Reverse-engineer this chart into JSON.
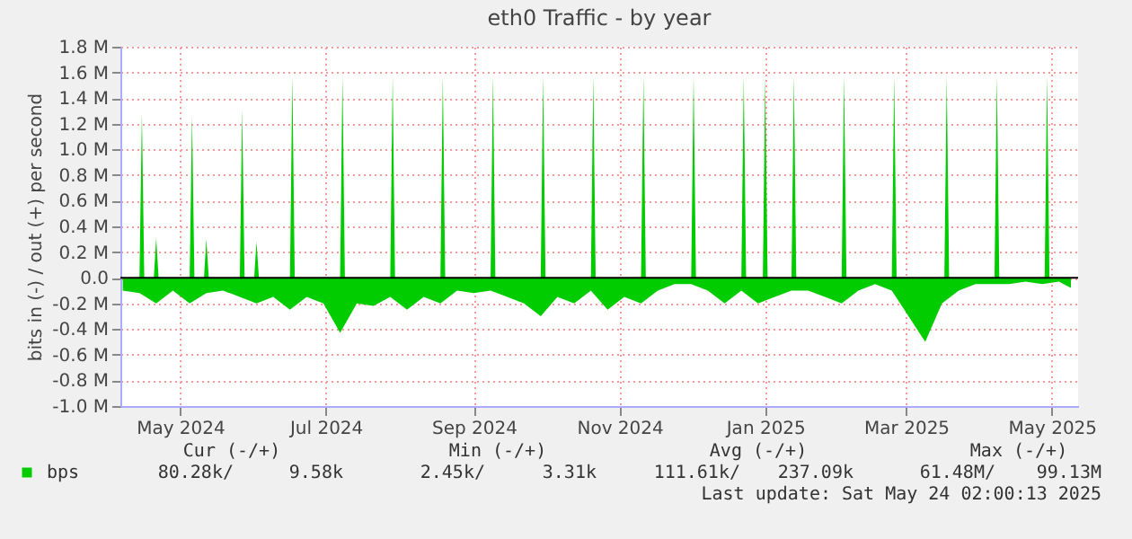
{
  "chart_data": {
    "type": "area",
    "title": "eth0 Traffic - by year",
    "ylabel": "bits in (-) / out (+) per second",
    "xlim": [
      "2024-04-20",
      "2025-05-26"
    ],
    "xticks": [
      {
        "value": "2024-05-15",
        "label": "May 2024"
      },
      {
        "value": "2024-07-15",
        "label": "Jul 2024"
      },
      {
        "value": "2024-09-15",
        "label": "Sep 2024"
      },
      {
        "value": "2024-11-15",
        "label": "Nov 2024"
      },
      {
        "value": "2025-01-15",
        "label": "Jan 2025"
      },
      {
        "value": "2025-03-15",
        "label": "Mar 2025"
      },
      {
        "value": "2025-05-15",
        "label": "May 2025"
      }
    ],
    "ylim": [
      -1.0,
      1.8
    ],
    "yticks": [
      {
        "value": -1.0,
        "label": "-1.0 M"
      },
      {
        "value": -0.8,
        "label": "-0.8 M"
      },
      {
        "value": -0.6,
        "label": "-0.6 M"
      },
      {
        "value": -0.4,
        "label": "-0.4 M"
      },
      {
        "value": -0.2,
        "label": "-0.2 M"
      },
      {
        "value": 0,
        "label": "0.0"
      },
      {
        "value": 0.2,
        "label": "0.2 M"
      },
      {
        "value": 0.4,
        "label": "0.4 M"
      },
      {
        "value": 0.6,
        "label": "0.6 M"
      },
      {
        "value": 0.8,
        "label": "0.8 M"
      },
      {
        "value": 1.0,
        "label": "1.0 M"
      },
      {
        "value": 1.2,
        "label": "1.2 M"
      },
      {
        "value": 1.4,
        "label": "1.4 M"
      },
      {
        "value": 1.6,
        "label": "1.6 M"
      },
      {
        "value": 1.8,
        "label": "1.8 M"
      }
    ],
    "grid": true,
    "legend": "bottom left",
    "series": [
      {
        "name": "bps",
        "color": "#00cc00",
        "x": [
          "2024-04-20",
          "2024-04-28",
          "2024-04-29",
          "2024-04-30",
          "2024-05-04",
          "2024-05-05",
          "2024-05-06",
          "2024-05-19",
          "2024-05-20",
          "2024-05-21",
          "2024-05-25",
          "2024-05-26",
          "2024-05-27",
          "2024-06-09",
          "2024-06-10",
          "2024-06-11",
          "2024-06-15",
          "2024-06-16",
          "2024-06-17",
          "2024-06-30",
          "2024-07-01",
          "2024-07-02",
          "2024-07-21",
          "2024-07-22",
          "2024-07-23",
          "2024-08-11",
          "2024-08-12",
          "2024-08-13",
          "2024-09-01",
          "2024-09-02",
          "2024-09-03",
          "2024-09-22",
          "2024-09-23",
          "2024-09-24",
          "2024-10-13",
          "2024-10-14",
          "2024-10-15",
          "2024-11-03",
          "2024-11-04",
          "2024-11-05",
          "2024-11-24",
          "2024-11-25",
          "2024-11-26",
          "2024-12-15",
          "2024-12-16",
          "2024-12-17",
          "2025-01-05",
          "2025-01-06",
          "2025-01-07",
          "2025-01-14",
          "2025-01-15",
          "2025-01-16",
          "2025-01-26",
          "2025-01-27",
          "2025-01-28",
          "2025-02-16",
          "2025-02-17",
          "2025-02-18",
          "2025-03-09",
          "2025-03-10",
          "2025-03-11",
          "2025-03-31",
          "2025-04-01",
          "2025-04-02",
          "2025-04-21",
          "2025-04-22",
          "2025-04-23",
          "2025-05-12",
          "2025-05-13",
          "2025-05-14",
          "2025-05-26"
        ],
        "values": [
          0,
          0,
          1.28,
          0,
          0,
          0.31,
          0,
          0,
          1.26,
          0,
          0,
          0.3,
          0,
          0,
          1.31,
          0,
          0,
          0.28,
          0,
          0,
          1.57,
          0,
          0,
          1.57,
          0,
          0,
          1.57,
          0,
          0,
          1.57,
          0,
          0,
          1.57,
          0,
          0,
          1.57,
          0,
          0,
          1.57,
          0,
          0,
          1.57,
          0,
          0,
          1.57,
          0,
          0,
          1.57,
          0,
          0,
          1.57,
          0,
          0,
          1.57,
          0,
          0,
          1.57,
          0,
          0,
          1.57,
          0,
          0,
          1.57,
          0,
          0,
          1.57,
          0,
          0,
          1.57,
          0,
          0
        ]
      },
      {
        "color": "#00cc00",
        "x": [
          "2024-04-21",
          "2024-04-28",
          "2024-05-05",
          "2024-05-12",
          "2024-05-19",
          "2024-05-26",
          "2024-06-02",
          "2024-06-09",
          "2024-06-16",
          "2024-06-23",
          "2024-06-30",
          "2024-07-07",
          "2024-07-14",
          "2024-07-21",
          "2024-07-28",
          "2024-08-04",
          "2024-08-11",
          "2024-08-18",
          "2024-08-25",
          "2024-09-01",
          "2024-09-08",
          "2024-09-15",
          "2024-09-22",
          "2024-09-29",
          "2024-10-06",
          "2024-10-13",
          "2024-10-20",
          "2024-10-27",
          "2024-11-03",
          "2024-11-10",
          "2024-11-17",
          "2024-11-24",
          "2024-12-01",
          "2024-12-08",
          "2024-12-15",
          "2024-12-22",
          "2024-12-29",
          "2025-01-05",
          "2025-01-12",
          "2025-01-19",
          "2025-01-26",
          "2025-02-02",
          "2025-02-09",
          "2025-02-16",
          "2025-02-23",
          "2025-03-02",
          "2025-03-09",
          "2025-03-16",
          "2025-03-23",
          "2025-03-30",
          "2025-04-06",
          "2025-04-13",
          "2025-04-20",
          "2025-04-27",
          "2025-05-04",
          "2025-05-11",
          "2025-05-18",
          "2025-05-23"
        ],
        "values": [
          -0.1,
          -0.12,
          -0.2,
          -0.1,
          -0.2,
          -0.12,
          -0.1,
          -0.15,
          -0.2,
          -0.15,
          -0.25,
          -0.15,
          -0.2,
          -0.43,
          -0.2,
          -0.22,
          -0.15,
          -0.25,
          -0.15,
          -0.2,
          -0.1,
          -0.12,
          -0.1,
          -0.15,
          -0.2,
          -0.3,
          -0.15,
          -0.2,
          -0.1,
          -0.25,
          -0.15,
          -0.2,
          -0.1,
          -0.05,
          -0.05,
          -0.1,
          -0.2,
          -0.1,
          -0.2,
          -0.15,
          -0.1,
          -0.1,
          -0.15,
          -0.2,
          -0.1,
          -0.05,
          -0.1,
          -0.3,
          -0.5,
          -0.2,
          -0.1,
          -0.05,
          -0.05,
          -0.05,
          -0.03,
          -0.05,
          -0.03,
          -0.08
        ]
      }
    ],
    "annotations": [
      "Cur (-/+)",
      "Min (-/+)",
      "Avg (-/+)",
      "Max (-/+)",
      "80.28k/",
      "9.58k",
      "2.45k/",
      "3.31k",
      "111.61k/",
      "237.09k",
      "61.48M/",
      "99.13M",
      "Last update: Sat May 24 02:00:13 2025"
    ]
  }
}
